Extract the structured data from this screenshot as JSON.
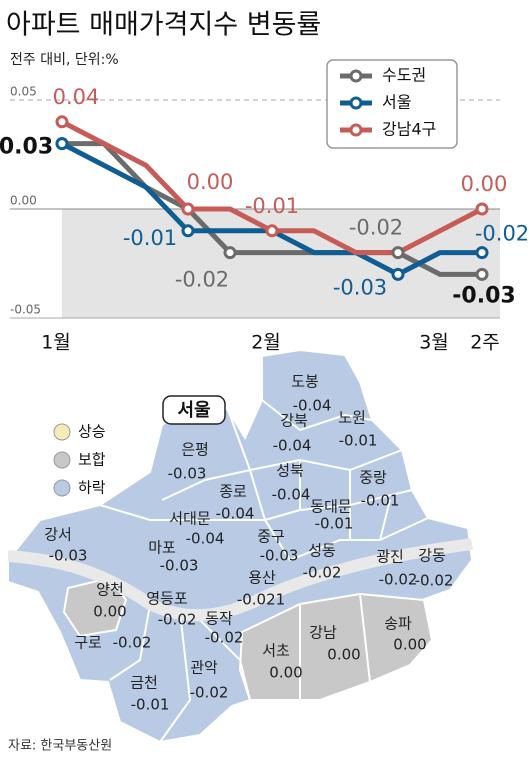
{
  "chart_data": {
    "type": "line",
    "title": "아파트 매매가격지수 변동률",
    "subtitle": "전주 대비, 단위:%",
    "categories": [
      "1월",
      null,
      null,
      null,
      null,
      "2월",
      null,
      null,
      null,
      "3월",
      "2주"
    ],
    "ylim": [
      -0.05,
      0.05
    ],
    "yticks": [
      0.05,
      {
        "value": 0,
        "label": "0.00"
      },
      -0.05
    ],
    "legend": "upper right",
    "series": [
      {
        "name": "수도권",
        "color": "#6b6b6b",
        "values": [
          0.03,
          0.03,
          0.01,
          0,
          -0.02,
          -0.02,
          -0.02,
          -0.02,
          -0.02,
          -0.03,
          -0.03
        ],
        "value_labels": [
          "0.03",
          null,
          null,
          null,
          "-0.02",
          null,
          null,
          null,
          "-0.02",
          null,
          "-0.03"
        ]
      },
      {
        "name": "서울",
        "color": "#0f5d93",
        "values": [
          0.03,
          0.02,
          0.01,
          -0.01,
          -0.01,
          -0.01,
          -0.02,
          -0.02,
          -0.03,
          -0.02,
          -0.02
        ],
        "value_labels": [
          null,
          null,
          null,
          "-0.01",
          null,
          null,
          null,
          null,
          "-0.03",
          null,
          "-0.02"
        ]
      },
      {
        "name": "강남4구",
        "color": "#c65b57",
        "values": [
          0.04,
          0.03,
          0.02,
          0,
          0,
          -0.01,
          -0.01,
          -0.02,
          -0.02,
          -0.01,
          0
        ],
        "value_labels": [
          "0.04",
          null,
          null,
          "0.00",
          null,
          "-0.01",
          null,
          null,
          null,
          null,
          "0.00"
        ]
      }
    ]
  },
  "map": {
    "title": "서울",
    "legend": [
      {
        "label": "상승",
        "color": "#f6eab7"
      },
      {
        "label": "보합",
        "color": "#c8c8c8"
      },
      {
        "label": "하락",
        "color": "#b9cbe4"
      }
    ],
    "districts": [
      {
        "name": "도봉",
        "change": "-0.04"
      },
      {
        "name": "노원",
        "change": "-0.01"
      },
      {
        "name": "강북",
        "change": "-0.04"
      },
      {
        "name": "은평",
        "change": "-0.03"
      },
      {
        "name": "중랑",
        "change": "-0.01"
      },
      {
        "name": "성북",
        "change": "-0.04"
      },
      {
        "name": "종로",
        "change": "-0.04"
      },
      {
        "name": "동대문",
        "change": "-0.01"
      },
      {
        "name": "서대문",
        "change": "-0.04"
      },
      {
        "name": "중구",
        "change": "-0.03"
      },
      {
        "name": "강서",
        "change": "-0.03"
      },
      {
        "name": "마포",
        "change": "-0.03"
      },
      {
        "name": "성동",
        "change": "-0.02"
      },
      {
        "name": "광진",
        "change": "-0.02"
      },
      {
        "name": "강동",
        "change": "-0.02"
      },
      {
        "name": "용산",
        "change": "-0.021"
      },
      {
        "name": "양천",
        "change": "0.00"
      },
      {
        "name": "영등포",
        "change": "-0.02"
      },
      {
        "name": "동작",
        "change": "-0.02"
      },
      {
        "name": "강남",
        "change": "0.00"
      },
      {
        "name": "송파",
        "change": "0.00"
      },
      {
        "name": "구로",
        "change": "-0.02"
      },
      {
        "name": "서초",
        "change": "0.00"
      },
      {
        "name": "관악",
        "change": "-0.02"
      },
      {
        "name": "금천",
        "change": "-0.01"
      }
    ]
  },
  "source": "자료: 한국부동산원"
}
